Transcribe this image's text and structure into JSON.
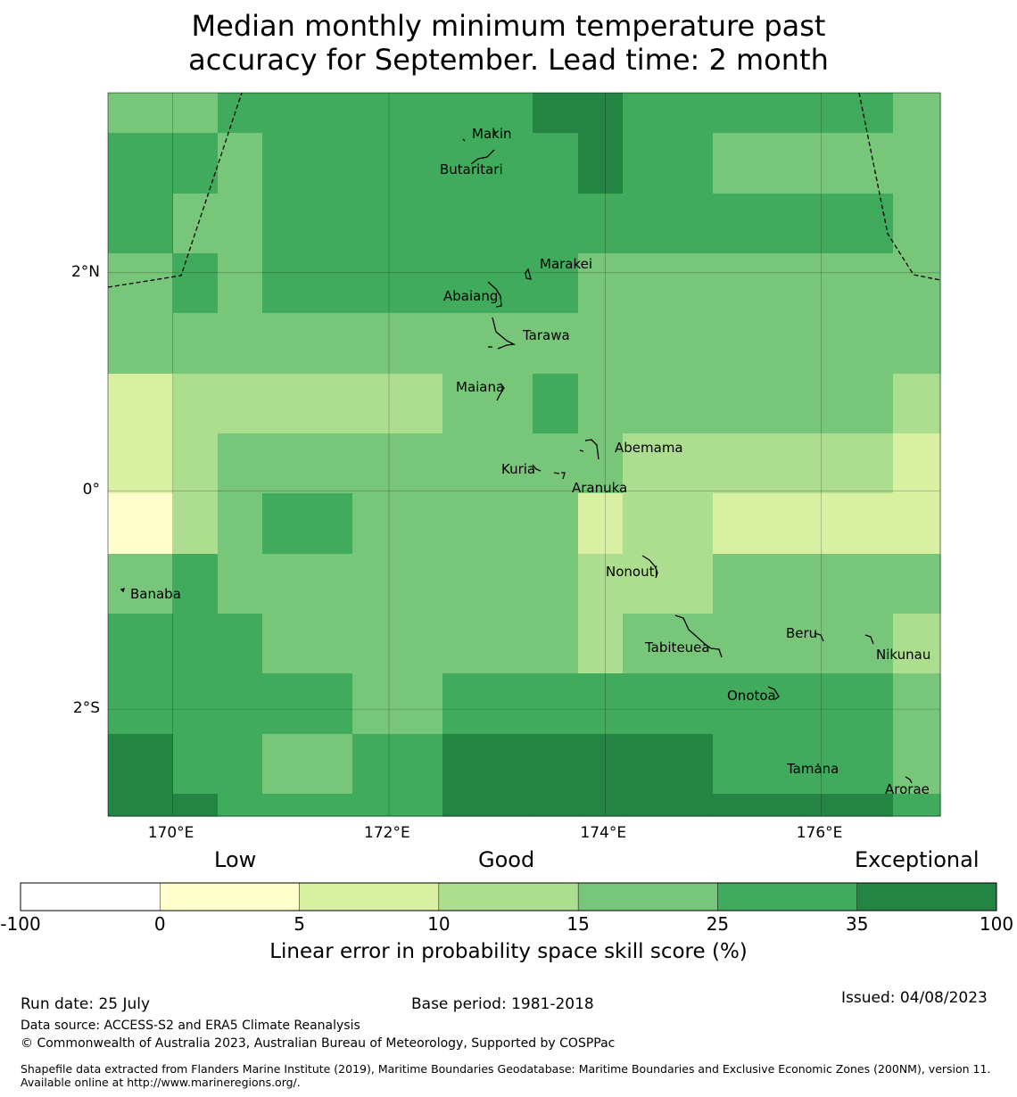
{
  "title_line1": "Median monthly minimum temperature past",
  "title_line2": "accuracy for September. Lead time: 2 month",
  "map": {
    "lon_range": [
      169.4,
      177.1
    ],
    "lat_range": [
      -2.98,
      3.65
    ],
    "lon_ticks": [
      {
        "value": 170,
        "label": "170°E"
      },
      {
        "value": 172,
        "label": "172°E"
      },
      {
        "value": 174,
        "label": "174°E"
      },
      {
        "value": 176,
        "label": "176°E"
      }
    ],
    "lat_ticks": [
      {
        "value": 2,
        "label": "2°N"
      },
      {
        "value": 0,
        "label": "0°"
      },
      {
        "value": -2,
        "label": "2°S"
      }
    ],
    "class_colors": [
      "#ffffcc",
      "#d9f0a3",
      "#addd8e",
      "#78c679",
      "#41ab5d",
      "#238443"
    ],
    "skill_grid": [
      [
        3,
        3,
        4,
        4,
        4,
        4,
        5,
        5,
        4,
        4,
        4,
        3
      ],
      [
        4,
        4,
        3,
        4,
        4,
        4,
        4,
        5,
        4,
        3,
        3,
        3
      ],
      [
        4,
        3,
        3,
        4,
        4,
        4,
        4,
        4,
        4,
        4,
        4,
        3
      ],
      [
        3,
        4,
        3,
        4,
        4,
        4,
        4,
        3,
        3,
        3,
        3,
        3
      ],
      [
        3,
        3,
        3,
        3,
        3,
        3,
        3,
        3,
        3,
        3,
        3,
        3
      ],
      [
        1,
        2,
        2,
        2,
        2,
        3,
        4,
        3,
        3,
        3,
        3,
        2
      ],
      [
        1,
        2,
        3,
        3,
        3,
        3,
        3,
        3,
        2,
        2,
        2,
        1
      ],
      [
        0,
        2,
        3,
        4,
        3,
        3,
        3,
        1,
        2,
        1,
        1,
        1
      ],
      [
        3,
        4,
        3,
        3,
        3,
        3,
        3,
        2,
        2,
        3,
        3,
        3
      ],
      [
        4,
        4,
        4,
        3,
        3,
        3,
        3,
        2,
        3,
        3,
        3,
        2
      ],
      [
        4,
        4,
        4,
        4,
        3,
        4,
        4,
        4,
        4,
        4,
        4,
        3
      ],
      [
        5,
        4,
        4,
        3,
        4,
        5,
        5,
        5,
        5,
        4,
        4,
        3
      ],
      [
        5,
        5,
        4,
        4,
        4,
        5,
        5,
        5,
        5,
        5,
        5,
        4
      ]
    ],
    "places": [
      {
        "name": "Makin",
        "lon": 172.97,
        "lat": 3.38
      },
      {
        "name": "Butaritari",
        "lon": 172.8,
        "lat": 3.05
      },
      {
        "name": "Marakei",
        "lon": 173.28,
        "lat": 2.01
      },
      {
        "name": "Abaiang",
        "lon": 172.95,
        "lat": 1.85
      },
      {
        "name": "Tarawa",
        "lon": 173.03,
        "lat": 1.45
      },
      {
        "name": "Maiana",
        "lon": 173.02,
        "lat": 0.92
      },
      {
        "name": "Abemama",
        "lon": 173.88,
        "lat": 0.42
      },
      {
        "name": "Kuria",
        "lon": 173.38,
        "lat": 0.23
      },
      {
        "name": "Aranuka",
        "lon": 173.62,
        "lat": 0.18
      },
      {
        "name": "Nonouti",
        "lon": 174.42,
        "lat": -0.65
      },
      {
        "name": "Banaba",
        "lon": 169.53,
        "lat": -0.86
      },
      {
        "name": "Tabiteuea",
        "lon": 174.85,
        "lat": -1.38
      },
      {
        "name": "Beru",
        "lon": 176.0,
        "lat": -1.35
      },
      {
        "name": "Nikunau",
        "lon": 176.45,
        "lat": -1.37
      },
      {
        "name": "Onotoa",
        "lon": 175.55,
        "lat": -1.82
      },
      {
        "name": "Tamana",
        "lon": 175.97,
        "lat": -2.5
      },
      {
        "name": "Arorae",
        "lon": 176.82,
        "lat": -2.64
      }
    ]
  },
  "colorbar": {
    "headings": {
      "low": "Low",
      "good": "Good",
      "exceptional": "Exceptional"
    },
    "bins": [
      {
        "from": "-100",
        "color": "#ffffff"
      },
      {
        "from": "0",
        "color": "#ffffcc"
      },
      {
        "from": "5",
        "color": "#d9f0a3"
      },
      {
        "from": "10",
        "color": "#addd8e"
      },
      {
        "from": "15",
        "color": "#78c679"
      },
      {
        "from": "25",
        "color": "#41ab5d"
      },
      {
        "from": "35",
        "color": "#238443"
      }
    ],
    "tick_labels": [
      "-100",
      "0",
      "5",
      "10",
      "15",
      "25",
      "35",
      "100"
    ],
    "label": "Linear error in probability space skill score (%)"
  },
  "footer": {
    "run_date": "Run date: 25 July",
    "base_period": "Base period: 1981-2018",
    "issued": "Issued: 04/08/2023",
    "data_source": "Data source: ACCESS-S2 and ERA5 Climate Reanalysis",
    "copyright": "© Commonwealth of Australia 2023, Australian Bureau of Meteorology, Supported by COSPPac",
    "shapefile": "Shapefile data extracted from Flanders Marine Institute (2019), Maritime Boundaries Geodatabase: Maritime Boundaries and Exclusive Economic Zones (200NM), version 11. Available online at http://www.marineregions.org/."
  }
}
